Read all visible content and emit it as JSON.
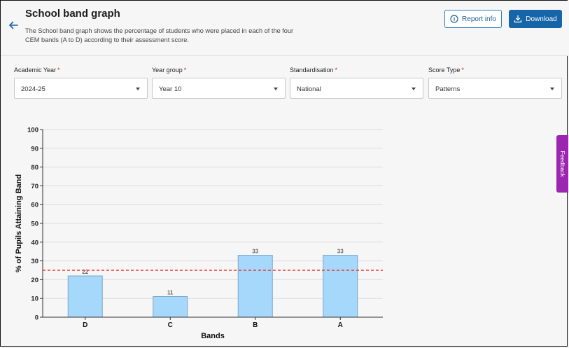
{
  "header": {
    "title": "School band graph",
    "description": "The School band graph shows the percentage of students who were placed in each of the four CEM bands (A to D) according to their assessment score.",
    "report_info_label": "Report info",
    "download_label": "Download"
  },
  "filters": [
    {
      "label": "Academic Year",
      "value": "2024-25"
    },
    {
      "label": "Year group",
      "value": "Year 10"
    },
    {
      "label": "Standardisation",
      "value": "National"
    },
    {
      "label": "Score Type",
      "value": "Patterns"
    }
  ],
  "required_mark": "*",
  "feedback_label": "Feedback",
  "colors": {
    "accent": "#1565a8",
    "bar": "#a6d8fb",
    "reference_line": "#e53935",
    "feedback": "#9b27b0"
  },
  "chart_data": {
    "type": "bar",
    "categories": [
      "D",
      "C",
      "B",
      "A"
    ],
    "values": [
      22,
      11,
      33,
      33
    ],
    "data_labels": [
      "22",
      "11",
      "33",
      "33"
    ],
    "xlabel": "Bands",
    "ylabel": "% of Pupils Attaining Band",
    "ylim": [
      0,
      100
    ],
    "yticks": [
      0,
      10,
      20,
      30,
      40,
      50,
      60,
      70,
      80,
      90,
      100
    ],
    "reference_line": 25,
    "grid": true
  }
}
